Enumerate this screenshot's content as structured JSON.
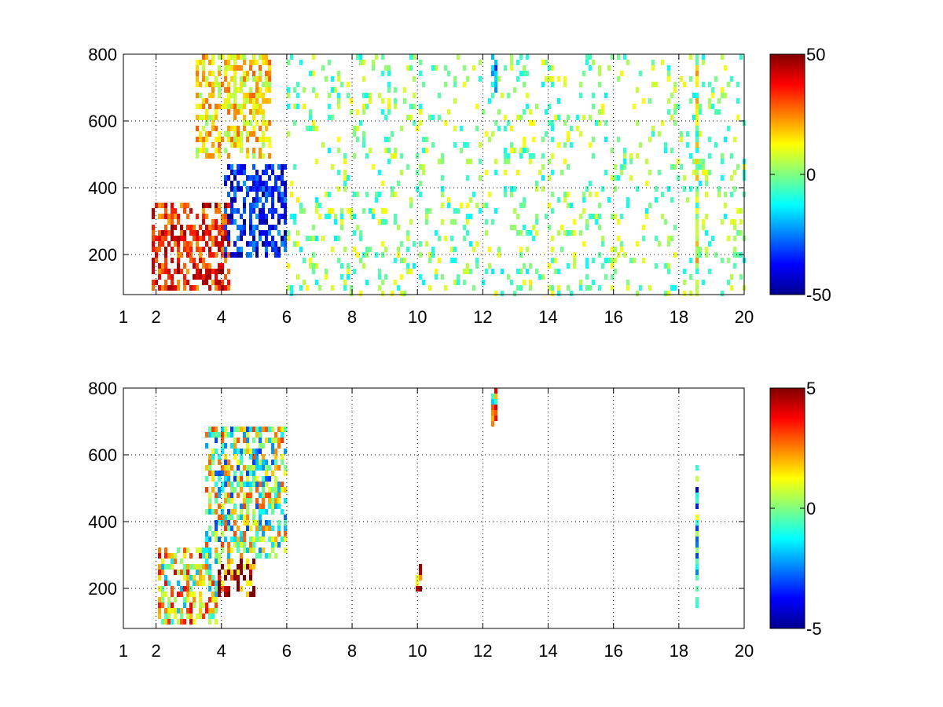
{
  "chart_data": [
    {
      "type": "heatmap",
      "title": "",
      "xlabel": "",
      "ylabel": "",
      "xlim": [
        1,
        20
      ],
      "ylim": [
        80,
        800
      ],
      "x_ticks": [
        1,
        2,
        4,
        6,
        8,
        10,
        12,
        14,
        16,
        18,
        20
      ],
      "y_ticks": [
        200,
        400,
        600,
        800
      ],
      "grid": "dotted",
      "colormap": "jet",
      "colorbar": {
        "min": -50,
        "max": 50,
        "ticks": [
          -50,
          0,
          50
        ]
      },
      "features": [
        {
          "description": "positive band",
          "x_range": [
            1.8,
            4.2
          ],
          "y_range": [
            100,
            360
          ],
          "value": 35
        },
        {
          "description": "negative band",
          "x_range": [
            4.0,
            6.0
          ],
          "y_range": [
            200,
            480
          ],
          "value": -35
        },
        {
          "description": "positive upper region",
          "x_range": [
            3.2,
            5.5
          ],
          "y_range": [
            500,
            800
          ],
          "value": 15
        },
        {
          "description": "scattered near-zero columns",
          "x_range": [
            6,
            20
          ],
          "y_range": [
            80,
            800
          ],
          "value": 0
        },
        {
          "description": "blue streak",
          "x": 12.3,
          "y_range": [
            690,
            800
          ],
          "value": -25
        },
        {
          "description": "yellow column",
          "x": 18.5,
          "y_range": [
            80,
            800
          ],
          "value": 10
        }
      ]
    },
    {
      "type": "heatmap",
      "title": "",
      "xlabel": "",
      "ylabel": "",
      "xlim": [
        1,
        20
      ],
      "ylim": [
        80,
        800
      ],
      "x_ticks": [
        1,
        2,
        4,
        6,
        8,
        10,
        12,
        14,
        16,
        18,
        20
      ],
      "y_ticks": [
        200,
        400,
        600,
        800
      ],
      "grid": "dotted",
      "colormap": "jet",
      "colorbar": {
        "min": -5,
        "max": 5,
        "ticks": [
          -5,
          0,
          5
        ]
      },
      "features": [
        {
          "description": "red band",
          "x_range": [
            3.8,
            5.0
          ],
          "y_range": [
            180,
            300
          ],
          "value": 4
        },
        {
          "description": "mixed upper cloud",
          "x_range": [
            3.5,
            6.0
          ],
          "y_range": [
            300,
            700
          ],
          "value": 0
        },
        {
          "description": "lower-left cloud",
          "x_range": [
            2.0,
            3.8
          ],
          "y_range": [
            100,
            330
          ],
          "value": 1
        },
        {
          "description": "isolated column",
          "x": 10.0,
          "y_range": [
            200,
            280
          ],
          "value": 2
        },
        {
          "description": "isolated column",
          "x": 12.3,
          "y_range": [
            690,
            800
          ],
          "value": 1
        },
        {
          "description": "sparse points",
          "x": 18.5,
          "y_range": [
            150,
            600
          ],
          "value": -1
        }
      ]
    }
  ]
}
